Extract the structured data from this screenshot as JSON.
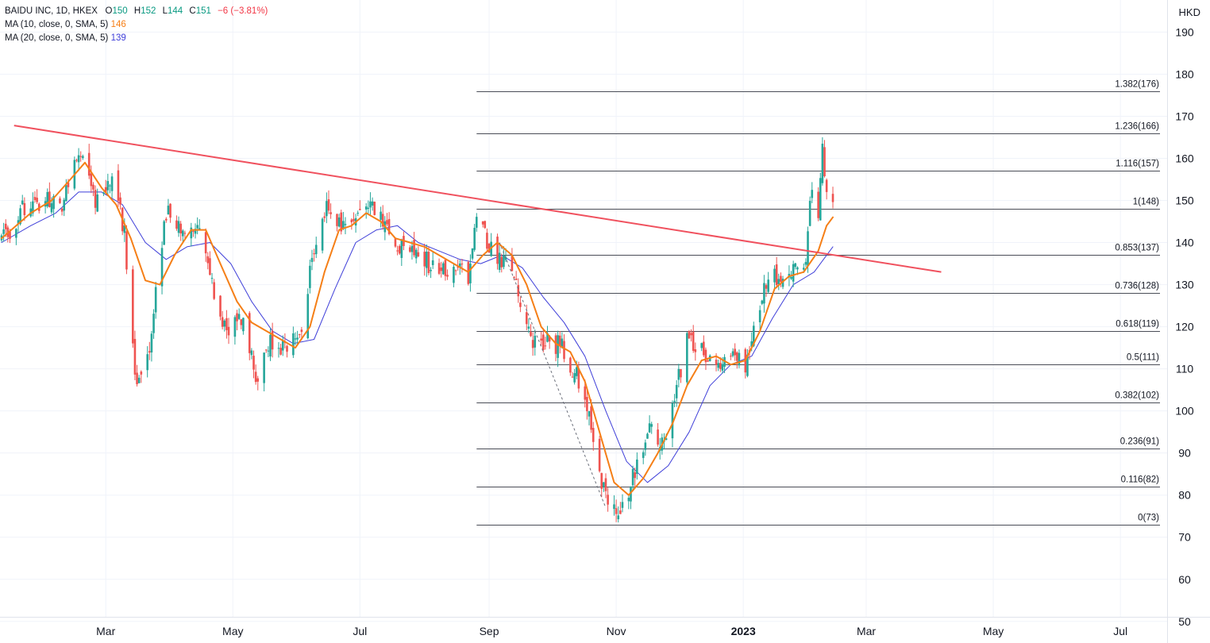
{
  "legend": {
    "symbol_line": "BAIDU INC, 1D, HKEX",
    "open_label": "O",
    "open": "150",
    "high_label": "H",
    "high": "152",
    "low_label": "L",
    "low": "144",
    "close_label": "C",
    "close": "151",
    "change": "−6 (−3.81%)",
    "change_color": "#f23645",
    "value_color": "#089981",
    "ma10_label": "MA (10, close, 0, SMA, 5)",
    "ma10_value": "146",
    "ma10_color": "#f57f17",
    "ma20_label": "MA (20, close, 0, SMA, 5)",
    "ma20_value": "139",
    "ma20_color": "#3f3fd9"
  },
  "currency": "HKD",
  "chart_data": {
    "type": "candlestick",
    "y_axis": {
      "ticks": [
        50,
        60,
        70,
        80,
        90,
        100,
        110,
        120,
        130,
        140,
        150,
        160,
        170,
        180,
        190
      ],
      "range": [
        46,
        196
      ]
    },
    "x_axis": {
      "range": [
        "2022-01-10",
        "2023-07-20"
      ],
      "ticks": [
        {
          "label": "Mar",
          "date": "2022-03-01",
          "bold": false
        },
        {
          "label": "May",
          "date": "2022-05-01",
          "bold": false
        },
        {
          "label": "Jul",
          "date": "2022-07-01",
          "bold": false
        },
        {
          "label": "Sep",
          "date": "2022-09-01",
          "bold": false
        },
        {
          "label": "Nov",
          "date": "2022-11-01",
          "bold": false
        },
        {
          "label": "2023",
          "date": "2023-01-01",
          "bold": true
        },
        {
          "label": "Mar",
          "date": "2023-03-01",
          "bold": false
        },
        {
          "label": "May",
          "date": "2023-05-01",
          "bold": false
        },
        {
          "label": "Jul",
          "date": "2023-07-01",
          "bold": false
        }
      ]
    },
    "fibonacci": {
      "start": "2022-08-26",
      "end": "2023-07-20",
      "levels": [
        {
          "ratio": "0",
          "price": 73,
          "label": "0(73)"
        },
        {
          "ratio": "0.116",
          "price": 82,
          "label": "0.116(82)"
        },
        {
          "ratio": "0.236",
          "price": 91,
          "label": "0.236(91)"
        },
        {
          "ratio": "0.382",
          "price": 102,
          "label": "0.382(102)"
        },
        {
          "ratio": "0.5",
          "price": 111,
          "label": "0.5(111)"
        },
        {
          "ratio": "0.618",
          "price": 119,
          "label": "0.618(119)"
        },
        {
          "ratio": "0.736",
          "price": 128,
          "label": "0.736(128)"
        },
        {
          "ratio": "0.853",
          "price": 137,
          "label": "0.853(137)"
        },
        {
          "ratio": "1",
          "price": 148,
          "label": "1(148)"
        },
        {
          "ratio": "1.116",
          "price": 157,
          "label": "1.116(157)"
        },
        {
          "ratio": "1.236",
          "price": 166,
          "label": "1.236(166)"
        },
        {
          "ratio": "1.382",
          "price": 176,
          "label": "1.382(176)"
        }
      ]
    },
    "trendline": {
      "color": "#f0515e",
      "points": [
        [
          "2022-01-16",
          167.8
        ],
        [
          "2023-04-06",
          133.0
        ]
      ]
    },
    "dashed_line": {
      "points": [
        [
          "2022-09-06",
          140.0
        ],
        [
          "2022-10-27",
          77.0
        ]
      ]
    },
    "candle_path": [
      [
        "2022-01-10",
        140
      ],
      [
        "2022-01-22",
        149
      ],
      [
        "2022-02-01",
        150
      ],
      [
        "2022-02-08",
        149
      ],
      [
        "2022-02-16",
        163
      ],
      [
        "2022-02-24",
        149
      ],
      [
        "2022-03-04",
        156
      ],
      [
        "2022-03-10",
        143
      ],
      [
        "2022-03-15",
        107
      ],
      [
        "2022-03-22",
        115
      ],
      [
        "2022-03-30",
        147
      ],
      [
        "2022-04-07",
        142
      ],
      [
        "2022-04-14",
        146
      ],
      [
        "2022-04-22",
        127
      ],
      [
        "2022-04-28",
        118
      ],
      [
        "2022-05-06",
        122
      ],
      [
        "2022-05-12",
        108
      ],
      [
        "2022-05-19",
        117
      ],
      [
        "2022-05-26",
        115
      ],
      [
        "2022-06-03",
        121
      ],
      [
        "2022-06-09",
        138
      ],
      [
        "2022-06-15",
        150
      ],
      [
        "2022-06-21",
        144
      ],
      [
        "2022-06-29",
        147
      ],
      [
        "2022-07-06",
        151
      ],
      [
        "2022-07-12",
        144
      ],
      [
        "2022-07-20",
        139
      ],
      [
        "2022-07-27",
        138
      ],
      [
        "2022-08-03",
        135
      ],
      [
        "2022-08-10",
        133
      ],
      [
        "2022-08-16",
        134
      ],
      [
        "2022-08-22",
        131
      ],
      [
        "2022-08-26",
        145
      ],
      [
        "2022-09-02",
        138
      ],
      [
        "2022-09-09",
        136
      ],
      [
        "2022-09-15",
        129
      ],
      [
        "2022-09-21",
        116
      ],
      [
        "2022-09-29",
        117
      ],
      [
        "2022-10-06",
        115
      ],
      [
        "2022-10-13",
        108
      ],
      [
        "2022-10-19",
        100
      ],
      [
        "2022-10-25",
        82
      ],
      [
        "2022-10-31",
        76
      ],
      [
        "2022-11-04",
        78
      ],
      [
        "2022-11-10",
        85
      ],
      [
        "2022-11-17",
        95
      ],
      [
        "2022-11-24",
        92
      ],
      [
        "2022-11-30",
        106
      ],
      [
        "2022-12-06",
        118
      ],
      [
        "2022-12-13",
        113
      ],
      [
        "2022-12-19",
        110
      ],
      [
        "2022-12-27",
        113
      ],
      [
        "2023-01-03",
        111
      ],
      [
        "2023-01-09",
        126
      ],
      [
        "2023-01-13",
        133
      ],
      [
        "2023-01-19",
        131
      ],
      [
        "2023-01-26",
        135
      ],
      [
        "2023-01-31",
        136
      ],
      [
        "2023-02-03",
        155
      ],
      [
        "2023-02-06",
        146
      ],
      [
        "2023-02-08",
        163
      ],
      [
        "2023-02-10",
        150
      ],
      [
        "2023-02-13",
        151
      ]
    ],
    "ma10_path": [
      [
        "2022-01-10",
        141
      ],
      [
        "2022-01-24",
        147
      ],
      [
        "2022-02-03",
        150
      ],
      [
        "2022-02-12",
        155
      ],
      [
        "2022-02-19",
        159
      ],
      [
        "2022-02-27",
        153
      ],
      [
        "2022-03-06",
        149
      ],
      [
        "2022-03-13",
        141
      ],
      [
        "2022-03-20",
        131
      ],
      [
        "2022-03-27",
        130
      ],
      [
        "2022-04-03",
        137
      ],
      [
        "2022-04-11",
        143
      ],
      [
        "2022-04-18",
        143
      ],
      [
        "2022-04-25",
        135
      ],
      [
        "2022-05-03",
        126
      ],
      [
        "2022-05-10",
        121
      ],
      [
        "2022-05-17",
        119
      ],
      [
        "2022-05-24",
        117
      ],
      [
        "2022-05-31",
        115
      ],
      [
        "2022-06-07",
        120
      ],
      [
        "2022-06-14",
        133
      ],
      [
        "2022-06-21",
        143
      ],
      [
        "2022-06-27",
        144
      ],
      [
        "2022-07-04",
        147
      ],
      [
        "2022-07-11",
        145
      ],
      [
        "2022-07-18",
        141
      ],
      [
        "2022-07-25",
        140
      ],
      [
        "2022-08-01",
        139
      ],
      [
        "2022-08-08",
        137
      ],
      [
        "2022-08-15",
        135
      ],
      [
        "2022-08-22",
        133
      ],
      [
        "2022-08-29",
        137
      ],
      [
        "2022-09-05",
        140
      ],
      [
        "2022-09-12",
        137
      ],
      [
        "2022-09-19",
        130
      ],
      [
        "2022-09-26",
        120
      ],
      [
        "2022-10-03",
        116
      ],
      [
        "2022-10-10",
        114
      ],
      [
        "2022-10-17",
        107
      ],
      [
        "2022-10-24",
        95
      ],
      [
        "2022-10-31",
        83
      ],
      [
        "2022-11-07",
        80
      ],
      [
        "2022-11-14",
        84
      ],
      [
        "2022-11-21",
        90
      ],
      [
        "2022-11-28",
        97
      ],
      [
        "2022-12-05",
        106
      ],
      [
        "2022-12-12",
        112
      ],
      [
        "2022-12-19",
        113
      ],
      [
        "2022-12-26",
        111
      ],
      [
        "2023-01-02",
        112
      ],
      [
        "2023-01-09",
        119
      ],
      [
        "2023-01-16",
        129
      ],
      [
        "2023-01-23",
        132
      ],
      [
        "2023-01-30",
        133
      ],
      [
        "2023-02-06",
        138
      ],
      [
        "2023-02-10",
        144
      ],
      [
        "2023-02-13",
        146
      ]
    ],
    "ma20_path": [
      [
        "2022-01-10",
        140
      ],
      [
        "2022-01-24",
        144
      ],
      [
        "2022-02-05",
        147
      ],
      [
        "2022-02-16",
        152
      ],
      [
        "2022-02-27",
        152
      ],
      [
        "2022-03-09",
        149
      ],
      [
        "2022-03-20",
        140
      ],
      [
        "2022-03-30",
        136
      ],
      [
        "2022-04-09",
        139
      ],
      [
        "2022-04-20",
        140
      ],
      [
        "2022-04-30",
        135
      ],
      [
        "2022-05-10",
        126
      ],
      [
        "2022-05-20",
        119
      ],
      [
        "2022-05-30",
        116
      ],
      [
        "2022-06-09",
        117
      ],
      [
        "2022-06-19",
        129
      ],
      [
        "2022-06-29",
        140
      ],
      [
        "2022-07-09",
        143
      ],
      [
        "2022-07-19",
        144
      ],
      [
        "2022-07-29",
        140
      ],
      [
        "2022-08-08",
        138
      ],
      [
        "2022-08-18",
        136
      ],
      [
        "2022-08-28",
        135
      ],
      [
        "2022-09-07",
        137
      ],
      [
        "2022-09-17",
        134
      ],
      [
        "2022-09-27",
        127
      ],
      [
        "2022-10-07",
        121
      ],
      [
        "2022-10-17",
        113
      ],
      [
        "2022-10-27",
        100
      ],
      [
        "2022-11-06",
        88
      ],
      [
        "2022-11-16",
        83
      ],
      [
        "2022-11-26",
        87
      ],
      [
        "2022-12-06",
        95
      ],
      [
        "2022-12-16",
        106
      ],
      [
        "2022-12-26",
        111
      ],
      [
        "2023-01-05",
        113
      ],
      [
        "2023-01-15",
        122
      ],
      [
        "2023-01-25",
        130
      ],
      [
        "2023-02-04",
        133
      ],
      [
        "2023-02-13",
        139
      ]
    ]
  }
}
